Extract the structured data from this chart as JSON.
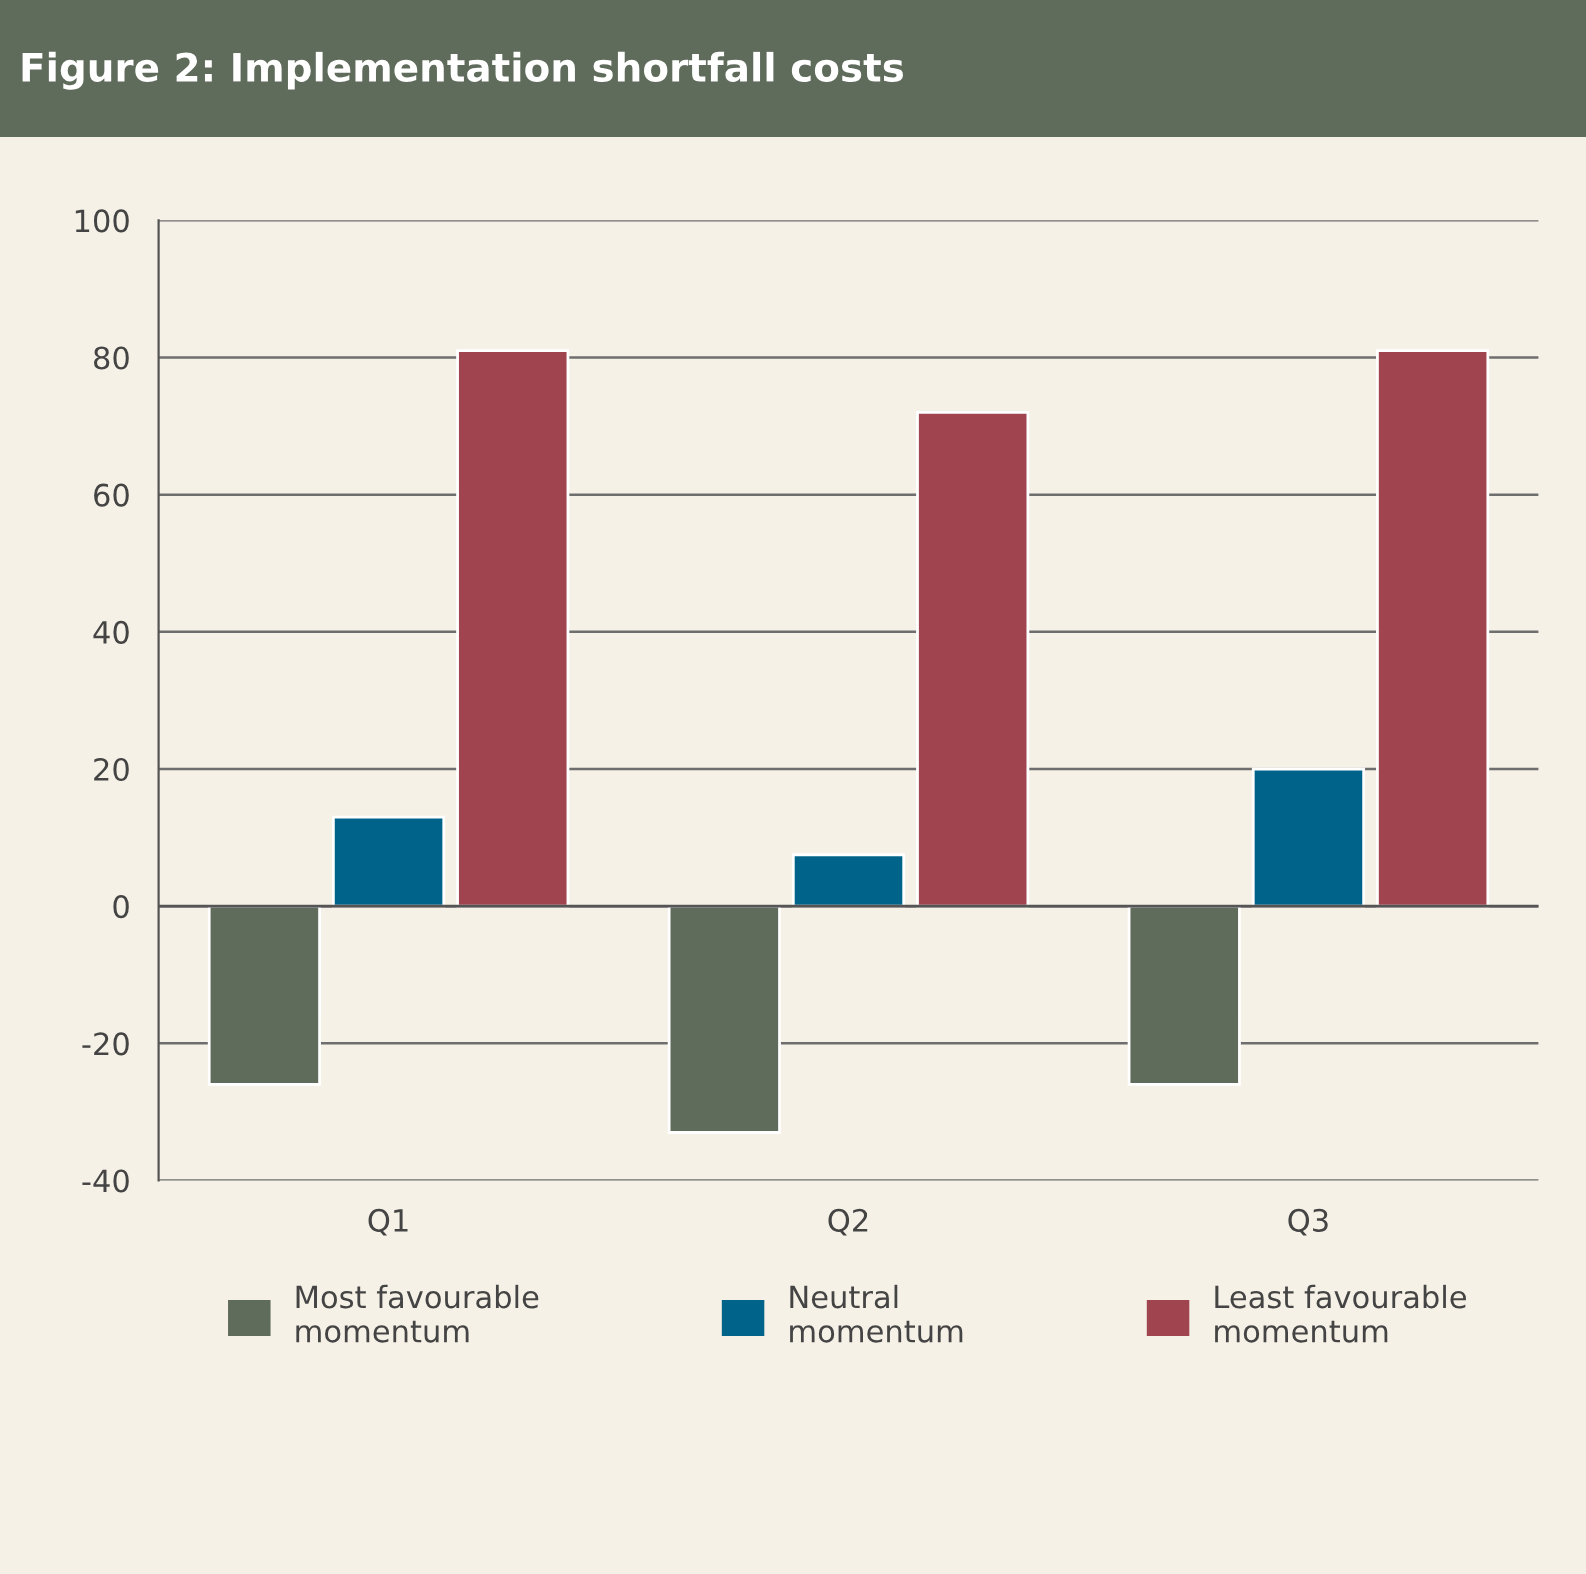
{
  "chart_data": {
    "type": "bar",
    "title": "Figure 2: Implementation shortfall costs",
    "categories": [
      "Q1",
      "Q2",
      "Q3"
    ],
    "series": [
      {
        "name": "Most favourable\nmomentum",
        "color": "#5f6b5b",
        "values": [
          -26,
          -33,
          -26
        ]
      },
      {
        "name": "Neutral\nmomentum",
        "color": "#00648a",
        "values": [
          13,
          7.5,
          20
        ]
      },
      {
        "name": "Least favourable\nmomentum",
        "color": "#a0454f",
        "values": [
          81,
          72,
          81
        ]
      }
    ],
    "ylim": [
      -40,
      100
    ],
    "yticks": [
      -40,
      -20,
      0,
      20,
      40,
      60,
      80,
      100
    ],
    "grid": "y",
    "legend": "bottom"
  }
}
